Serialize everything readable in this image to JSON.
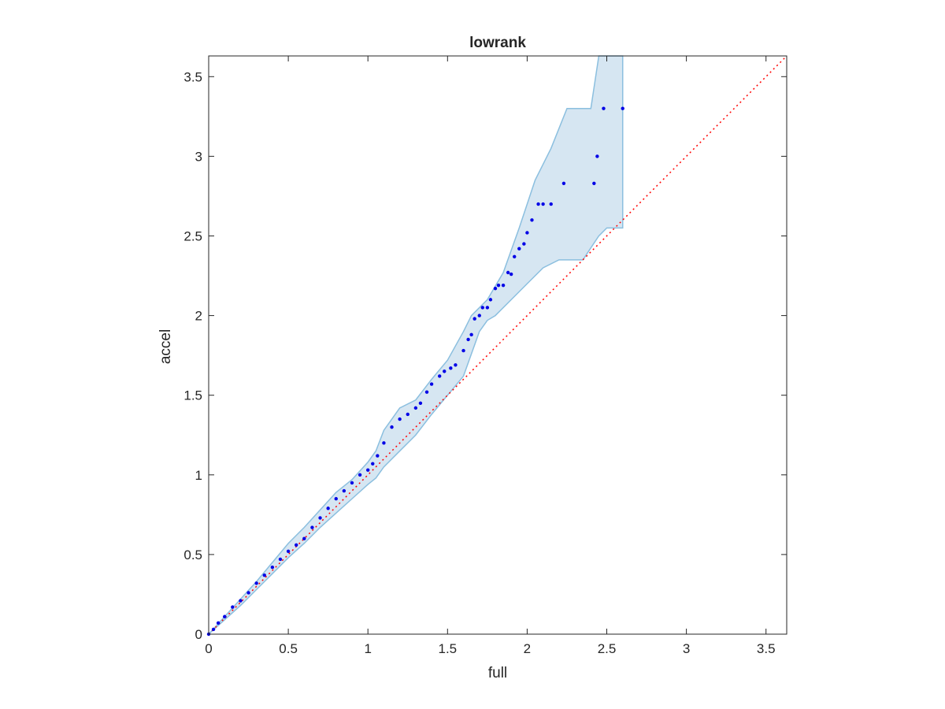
{
  "chart_data": {
    "type": "scatter",
    "title": "lowrank",
    "xlabel": "full",
    "ylabel": "accel",
    "xlim": [
      0,
      3.63
    ],
    "ylim": [
      0,
      3.63
    ],
    "xticks": [
      "0",
      "0.5",
      "1",
      "1.5",
      "2",
      "2.5",
      "3",
      "3.5"
    ],
    "yticks": [
      "0",
      "0.5",
      "1",
      "1.5",
      "2",
      "2.5",
      "3",
      "3.5"
    ],
    "xtick_values": [
      0,
      0.5,
      1,
      1.5,
      2,
      2.5,
      3,
      3.5
    ],
    "ytick_values": [
      0,
      0.5,
      1,
      1.5,
      2,
      2.5,
      3,
      3.5
    ],
    "grid": false,
    "box": true,
    "colors": {
      "points": "#0000e6",
      "band_fill": "#d6e6f2",
      "band_edge": "#8bbfdf",
      "reference_line": "#ff0000",
      "axes": "#262626"
    },
    "reference_line": {
      "from": [
        0,
        0
      ],
      "to": [
        3.63,
        3.63
      ],
      "style": "dotted"
    },
    "band": {
      "upper": [
        [
          0,
          0
        ],
        [
          0.1,
          0.11
        ],
        [
          0.2,
          0.22
        ],
        [
          0.3,
          0.33
        ],
        [
          0.4,
          0.45
        ],
        [
          0.5,
          0.57
        ],
        [
          0.6,
          0.67
        ],
        [
          0.7,
          0.78
        ],
        [
          0.8,
          0.89
        ],
        [
          0.9,
          0.97
        ],
        [
          1.0,
          1.08
        ],
        [
          1.05,
          1.15
        ],
        [
          1.1,
          1.28
        ],
        [
          1.15,
          1.35
        ],
        [
          1.2,
          1.42
        ],
        [
          1.3,
          1.47
        ],
        [
          1.4,
          1.6
        ],
        [
          1.5,
          1.72
        ],
        [
          1.6,
          1.9
        ],
        [
          1.65,
          2.0
        ],
        [
          1.75,
          2.1
        ],
        [
          1.85,
          2.27
        ],
        [
          1.95,
          2.55
        ],
        [
          2.05,
          2.85
        ],
        [
          2.15,
          3.05
        ],
        [
          2.25,
          3.3
        ],
        [
          2.4,
          3.3
        ],
        [
          2.45,
          3.63
        ],
        [
          2.6,
          3.63
        ]
      ],
      "lower": [
        [
          0,
          0
        ],
        [
          0.1,
          0.09
        ],
        [
          0.2,
          0.18
        ],
        [
          0.3,
          0.28
        ],
        [
          0.4,
          0.38
        ],
        [
          0.5,
          0.48
        ],
        [
          0.6,
          0.57
        ],
        [
          0.7,
          0.67
        ],
        [
          0.8,
          0.76
        ],
        [
          0.9,
          0.85
        ],
        [
          1.0,
          0.94
        ],
        [
          1.05,
          0.98
        ],
        [
          1.1,
          1.05
        ],
        [
          1.2,
          1.15
        ],
        [
          1.3,
          1.25
        ],
        [
          1.4,
          1.38
        ],
        [
          1.5,
          1.5
        ],
        [
          1.6,
          1.62
        ],
        [
          1.7,
          1.9
        ],
        [
          1.75,
          1.97
        ],
        [
          1.8,
          2.0
        ],
        [
          1.9,
          2.1
        ],
        [
          2.0,
          2.2
        ],
        [
          2.1,
          2.3
        ],
        [
          2.2,
          2.35
        ],
        [
          2.35,
          2.35
        ],
        [
          2.45,
          2.5
        ],
        [
          2.5,
          2.55
        ],
        [
          2.6,
          2.55
        ]
      ]
    },
    "points": {
      "x": [
        0.0,
        0.03,
        0.06,
        0.1,
        0.15,
        0.2,
        0.25,
        0.3,
        0.35,
        0.4,
        0.45,
        0.5,
        0.55,
        0.6,
        0.65,
        0.7,
        0.75,
        0.8,
        0.85,
        0.9,
        0.95,
        1.0,
        1.03,
        1.06,
        1.1,
        1.15,
        1.2,
        1.25,
        1.3,
        1.33,
        1.37,
        1.4,
        1.45,
        1.48,
        1.52,
        1.55,
        1.6,
        1.63,
        1.65,
        1.67,
        1.7,
        1.72,
        1.75,
        1.77,
        1.8,
        1.82,
        1.85,
        1.88,
        1.9,
        1.92,
        1.95,
        1.98,
        2.0,
        2.03,
        2.07,
        2.1,
        2.15,
        2.23,
        2.42,
        2.44,
        2.48,
        2.6
      ],
      "y": [
        0.0,
        0.03,
        0.07,
        0.11,
        0.17,
        0.21,
        0.26,
        0.32,
        0.37,
        0.42,
        0.47,
        0.52,
        0.56,
        0.6,
        0.67,
        0.73,
        0.79,
        0.85,
        0.9,
        0.95,
        1.0,
        1.03,
        1.07,
        1.12,
        1.2,
        1.3,
        1.35,
        1.38,
        1.42,
        1.45,
        1.52,
        1.57,
        1.62,
        1.65,
        1.67,
        1.69,
        1.78,
        1.85,
        1.88,
        1.98,
        2.0,
        2.05,
        2.05,
        2.1,
        2.17,
        2.19,
        2.19,
        2.27,
        2.26,
        2.37,
        2.42,
        2.45,
        2.52,
        2.6,
        2.7,
        2.7,
        2.7,
        2.83,
        2.83,
        3.0,
        3.3,
        3.3
      ]
    }
  }
}
